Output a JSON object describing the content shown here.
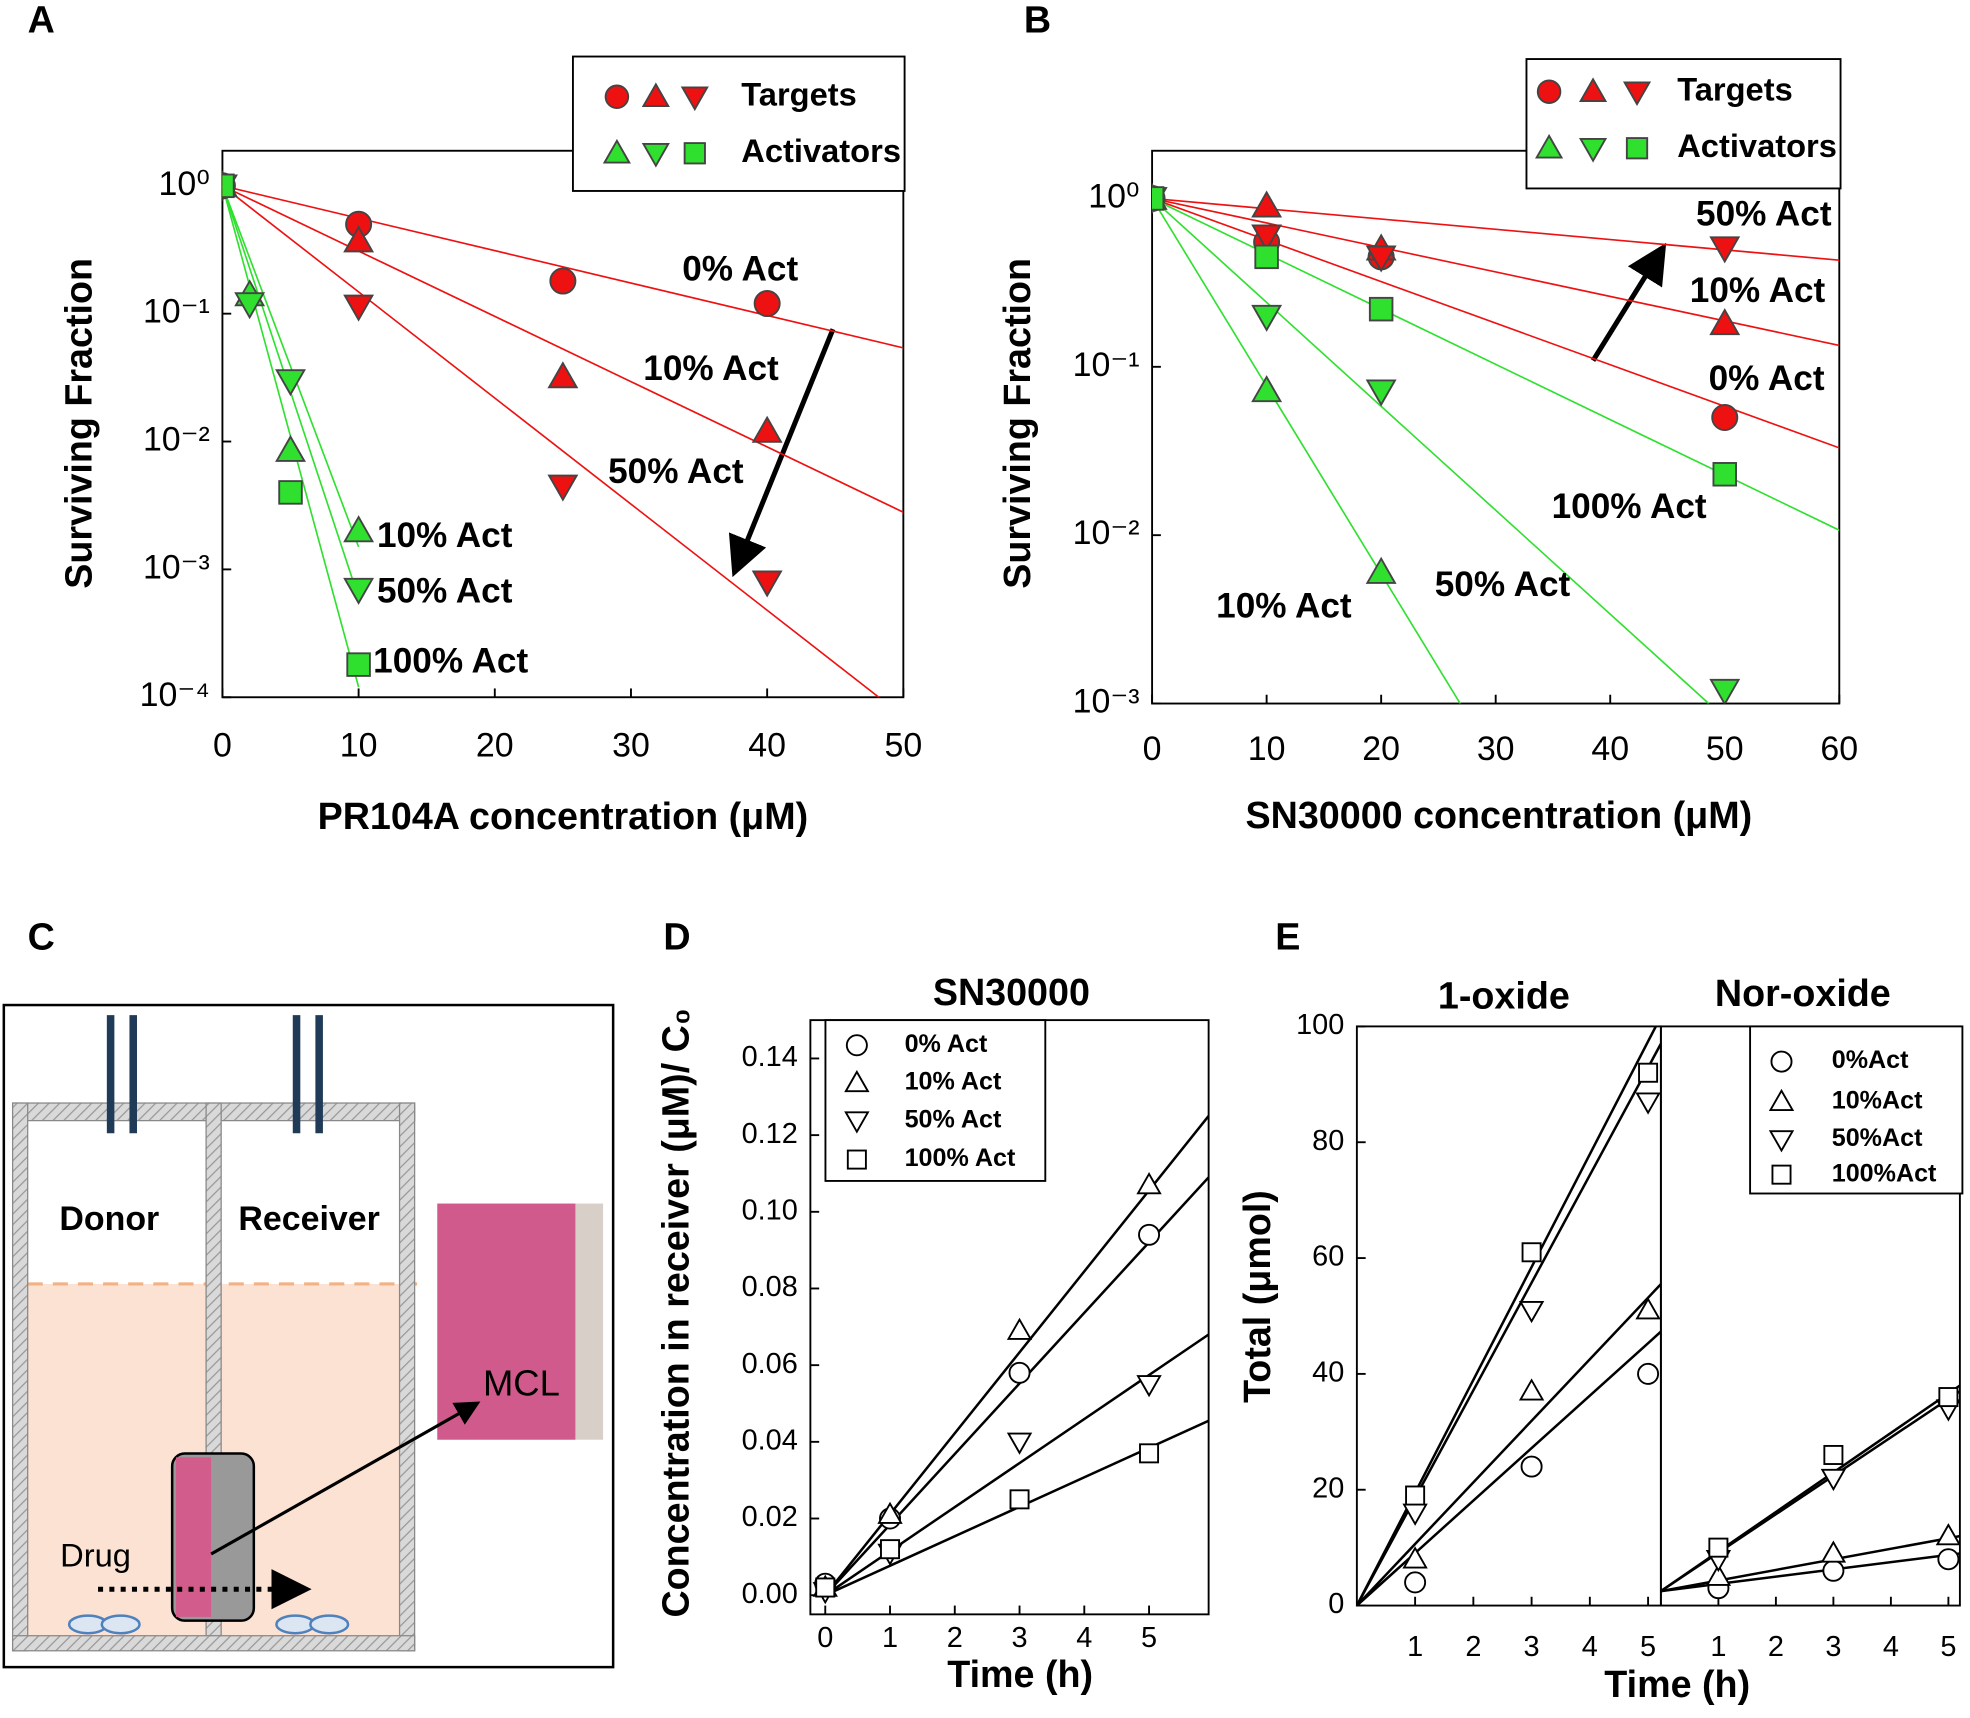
{
  "chart_data": [
    {
      "type": "scatter",
      "panel": "A",
      "xlabel": "PR104A concentration (μM)",
      "ylabel": "Surviving Fraction",
      "ylog": true,
      "xlim": [
        0,
        50
      ],
      "xticks": [
        0,
        10,
        20,
        30,
        40,
        50
      ],
      "ylim": [
        0.0001,
        1.88
      ],
      "yticks": [
        {
          "value": 1,
          "label": "10⁰"
        },
        {
          "value": 0.1,
          "label": "10⁻¹"
        },
        {
          "value": 0.01,
          "label": "10⁻²"
        },
        {
          "value": 0.001,
          "label": "10⁻³"
        },
        {
          "value": 0.0001,
          "label": "10⁻⁴"
        }
      ],
      "legend_groups": [
        "Targets",
        "Activators"
      ],
      "legend": "upper right",
      "series": [
        {
          "name": "0% Act",
          "group": 0,
          "marker": "circle",
          "color": "#ee1111",
          "label_color": "#ff5050",
          "x": [
            0,
            10,
            25,
            40
          ],
          "values": [
            1,
            0.5,
            0.18,
            0.12
          ],
          "fit_x": [
            0,
            50
          ],
          "fit_values": [
            1,
            0.054
          ]
        },
        {
          "name": "10% Act",
          "group": 0,
          "marker": "triangle-up",
          "color": "#ee1111",
          "label_color": "#ff5050",
          "x": [
            0,
            10,
            25,
            40
          ],
          "values": [
            1,
            0.37,
            0.032,
            0.012
          ],
          "fit_x": [
            0,
            50
          ],
          "fit_values": [
            1,
            0.0028
          ]
        },
        {
          "name": "50% Act",
          "group": 0,
          "marker": "triangle-down",
          "color": "#ee1111",
          "label_color": "#ff5050",
          "x": [
            0,
            10,
            25,
            40
          ],
          "values": [
            1,
            0.115,
            0.0045,
            0.0008
          ],
          "fit_x": [
            0,
            48.2
          ],
          "fit_values": [
            1,
            0.0001
          ]
        },
        {
          "name": "10% Act",
          "group": 1,
          "marker": "triangle-up",
          "color": "#2fe02f",
          "label_color": "#229922",
          "x": [
            0,
            2,
            5,
            10
          ],
          "values": [
            1,
            0.14,
            0.0085,
            0.002
          ],
          "fit_x": [
            0,
            10
          ],
          "fit_values": [
            1,
            0.0015
          ]
        },
        {
          "name": "50% Act",
          "group": 1,
          "marker": "triangle-down",
          "color": "#2fe02f",
          "label_color": "#229922",
          "x": [
            0,
            2,
            5,
            10
          ],
          "values": [
            1,
            0.12,
            0.03,
            0.0007
          ],
          "fit_x": [
            0,
            10
          ],
          "fit_values": [
            1,
            0.0006
          ]
        },
        {
          "name": "100% Act",
          "group": 1,
          "marker": "square",
          "color": "#2fe02f",
          "label_color": "#229922",
          "x": [
            0,
            5,
            10
          ],
          "values": [
            1,
            0.004,
            0.00018
          ],
          "fit_x": [
            0,
            10
          ],
          "fit_values": [
            1,
            0.00012
          ]
        }
      ]
    },
    {
      "type": "scatter",
      "panel": "B",
      "xlabel": "SN30000 concentration (μM)",
      "ylabel": "Surviving Fraction",
      "ylog": true,
      "xlim": [
        0,
        60
      ],
      "xticks": [
        0,
        10,
        20,
        30,
        40,
        50,
        60
      ],
      "ylim": [
        0.001,
        1.92
      ],
      "yticks": [
        {
          "value": 1,
          "label": "10⁰"
        },
        {
          "value": 0.1,
          "label": "10⁻¹"
        },
        {
          "value": 0.01,
          "label": "10⁻²"
        },
        {
          "value": 0.001,
          "label": "10⁻³"
        }
      ],
      "legend_groups": [
        "Targets",
        "Activators"
      ],
      "legend": "upper right",
      "series": [
        {
          "name": "0% Act",
          "group": 0,
          "marker": "circle",
          "color": "#ee1111",
          "label_color": "#ee2222",
          "x": [
            0,
            10,
            20,
            50
          ],
          "values": [
            1,
            0.55,
            0.45,
            0.05
          ],
          "fit_x": [
            0,
            60
          ],
          "fit_values": [
            1,
            0.033
          ]
        },
        {
          "name": "10% Act",
          "group": 0,
          "marker": "triangle-up",
          "color": "#ee1111",
          "label_color": "#ee2222",
          "x": [
            0,
            10,
            20,
            50
          ],
          "values": [
            1,
            0.9,
            0.5,
            0.18
          ],
          "fit_x": [
            0,
            60
          ],
          "fit_values": [
            1,
            0.134
          ]
        },
        {
          "name": "50% Act",
          "group": 0,
          "marker": "triangle-down",
          "color": "#ee1111",
          "label_color": "#ee2222",
          "x": [
            0,
            10,
            20,
            50
          ],
          "values": [
            1,
            0.6,
            0.45,
            0.51
          ],
          "fit_x": [
            0,
            60
          ],
          "fit_values": [
            1,
            0.43
          ]
        },
        {
          "name": "10% Act",
          "group": 1,
          "marker": "triangle-up",
          "color": "#2fe02f",
          "label_color": "#229922",
          "x": [
            0,
            10,
            20
          ],
          "values": [
            1,
            0.072,
            0.006
          ],
          "fit_x": [
            0,
            26.9
          ],
          "fit_values": [
            1,
            0.001
          ]
        },
        {
          "name": "50% Act",
          "group": 1,
          "marker": "triangle-down",
          "color": "#2fe02f",
          "label_color": "#229922",
          "x": [
            0,
            10,
            20,
            50
          ],
          "values": [
            1,
            0.2,
            0.072,
            0.0012
          ],
          "fit_x": [
            0,
            48.6
          ],
          "fit_values": [
            1,
            0.001
          ]
        },
        {
          "name": "100% Act",
          "group": 1,
          "marker": "square",
          "color": "#2fe02f",
          "label_color": "#229922",
          "x": [
            0,
            10,
            20,
            50
          ],
          "values": [
            1,
            0.45,
            0.22,
            0.023
          ],
          "fit_x": [
            0,
            60
          ],
          "fit_values": [
            1,
            0.0107
          ]
        }
      ]
    },
    {
      "type": "scatter",
      "panel": "D",
      "title": "SN30000",
      "xlabel": "Time (h)",
      "ylabel": "Concentration in receiver (μM)/ C₀",
      "xlim": [
        -0.23,
        5.92
      ],
      "xticks": [
        0,
        1,
        2,
        3,
        4,
        5
      ],
      "ylim": [
        -0.005,
        0.15
      ],
      "yticks": [
        {
          "value": 0,
          "label": "0.00"
        },
        {
          "value": 0.02,
          "label": "0.02"
        },
        {
          "value": 0.04,
          "label": "0.04"
        },
        {
          "value": 0.06,
          "label": "0.06"
        },
        {
          "value": 0.08,
          "label": "0.08"
        },
        {
          "value": 0.1,
          "label": "0.10"
        },
        {
          "value": 0.12,
          "label": "0.12"
        },
        {
          "value": 0.14,
          "label": "0.14"
        }
      ],
      "legend": "upper left",
      "series": [
        {
          "name": "0% Act",
          "marker": "circle",
          "color": "#000000",
          "x": [
            0,
            1,
            3,
            5
          ],
          "values": [
            0.003,
            0.02,
            0.058,
            0.094
          ],
          "fit_x": [
            0,
            5.92
          ],
          "fit_values": [
            0,
            0.109
          ]
        },
        {
          "name": "10% Act",
          "marker": "triangle-up",
          "color": "#000000",
          "x": [
            0,
            1,
            3,
            5
          ],
          "values": [
            0.002,
            0.021,
            0.069,
            0.107
          ],
          "fit_x": [
            0,
            5.92
          ],
          "fit_values": [
            0,
            0.125
          ]
        },
        {
          "name": "50% Act",
          "marker": "triangle-down",
          "color": "#000000",
          "x": [
            0,
            1,
            3,
            5
          ],
          "values": [
            0.001,
            0.011,
            0.04,
            0.055
          ],
          "fit_x": [
            0,
            5.92
          ],
          "fit_values": [
            0,
            0.068
          ]
        },
        {
          "name": "100% Act",
          "marker": "square",
          "color": "#000000",
          "x": [
            0,
            1,
            3,
            5
          ],
          "values": [
            0.002,
            0.012,
            0.025,
            0.037
          ],
          "fit_x": [
            0,
            5.92
          ],
          "fit_values": [
            0,
            0.0455
          ]
        }
      ]
    },
    {
      "type": "scatter",
      "panel": "E",
      "title": "1-oxide",
      "ylabel": "Total (μmol)",
      "xlim": [
        0,
        5.22
      ],
      "xticks": [
        1,
        2,
        3,
        4,
        5
      ],
      "ylim": [
        0,
        100
      ],
      "yticks": [
        0,
        20,
        40,
        60,
        80,
        100
      ],
      "series": [
        {
          "marker": "circle",
          "color": "#000000",
          "x": [
            1,
            3,
            5
          ],
          "values": [
            4,
            24,
            40
          ],
          "fit_x": [
            0,
            5.22
          ],
          "fit_values": [
            0,
            47.3
          ]
        },
        {
          "marker": "triangle-up",
          "color": "#000000",
          "x": [
            1,
            3,
            5
          ],
          "values": [
            8,
            37,
            51
          ],
          "fit_x": [
            0,
            5.22
          ],
          "fit_values": [
            0,
            55.5
          ]
        },
        {
          "marker": "triangle-down",
          "color": "#000000",
          "x": [
            1,
            3,
            5
          ],
          "values": [
            16,
            51,
            87
          ],
          "fit_x": [
            0,
            5.22
          ],
          "fit_values": [
            0,
            97
          ]
        },
        {
          "marker": "square",
          "color": "#000000",
          "x": [
            1,
            3,
            5
          ],
          "values": [
            19,
            61,
            92
          ],
          "fit_x": [
            0,
            5.22
          ],
          "fit_values": [
            0,
            101.7
          ]
        }
      ]
    },
    {
      "type": "scatter",
      "title": "Nor-oxide",
      "xlabel": "Time (h)",
      "xlim": [
        0,
        5.2
      ],
      "xticks": [
        1,
        2,
        3,
        4,
        5
      ],
      "ylim": [
        0,
        100
      ],
      "legend": "upper right",
      "series": [
        {
          "name": "0%Act",
          "marker": "circle",
          "color": "#000000",
          "x": [
            1,
            3,
            5
          ],
          "values": [
            3,
            6,
            8
          ],
          "fit_x": [
            0,
            5.2
          ],
          "fit_values": [
            2.5,
            9
          ]
        },
        {
          "name": "10%Act",
          "marker": "triangle-up",
          "color": "#000000",
          "x": [
            1,
            3,
            5
          ],
          "values": [
            5,
            9,
            12
          ],
          "fit_x": [
            0,
            5.2
          ],
          "fit_values": [
            2.5,
            12
          ]
        },
        {
          "name": "50%Act",
          "marker": "triangle-down",
          "color": "#000000",
          "x": [
            1,
            3,
            5
          ],
          "values": [
            8,
            22,
            34
          ],
          "fit_x": [
            0,
            5.2
          ],
          "fit_values": [
            2.5,
            37
          ]
        },
        {
          "name": "100%Act",
          "marker": "square",
          "color": "#000000",
          "x": [
            1,
            3,
            5
          ],
          "values": [
            10,
            26,
            36
          ],
          "fit_x": [
            0,
            5.2
          ],
          "fit_values": [
            2.5,
            38
          ]
        }
      ]
    }
  ],
  "diagram": {
    "panel": "C",
    "donor": "Donor",
    "receiver": "Receiver",
    "tissue": "MCL",
    "drug": "Drug"
  }
}
